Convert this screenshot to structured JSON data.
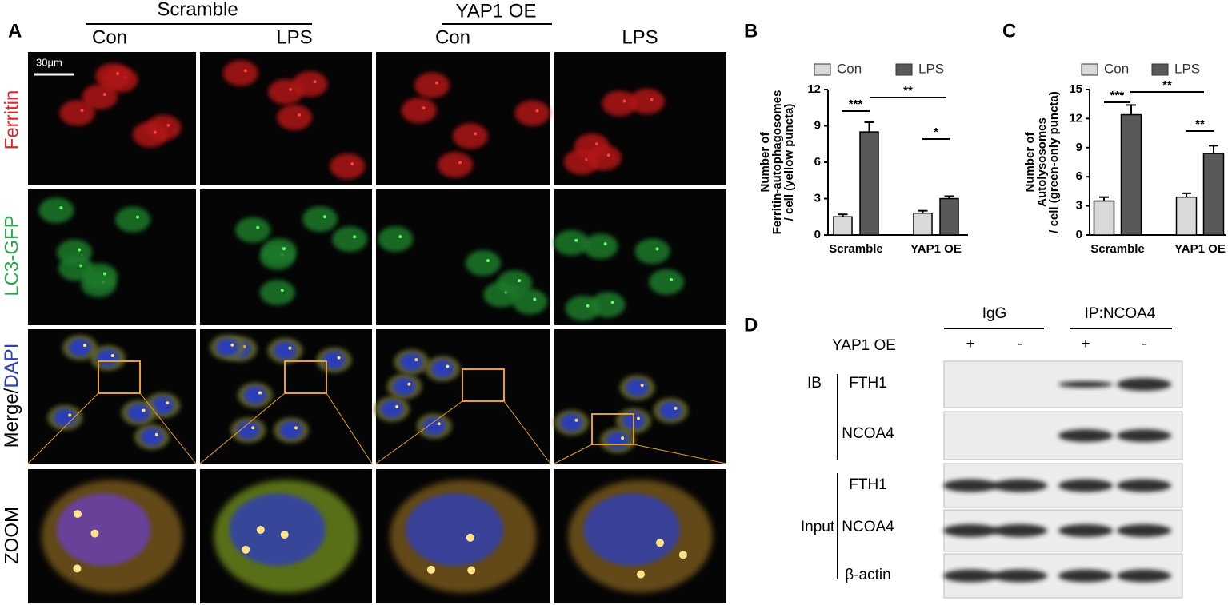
{
  "panel_labels": [
    "A",
    "B",
    "C",
    "D"
  ],
  "panel_a": {
    "groups": [
      {
        "title": "Scramble",
        "columns": [
          "Con",
          "LPS"
        ]
      },
      {
        "title": "YAP1 OE",
        "columns": [
          "Con",
          "LPS"
        ]
      }
    ],
    "rows": [
      "Ferritin",
      "LC3-GFP",
      [
        "Merge/",
        "DAPI"
      ],
      "ZOOM"
    ],
    "scale_bar": "30μm"
  },
  "chart_data": [
    {
      "type": "bar",
      "ylabel": [
        "Number of",
        "Ferritin-autophagosomes",
        "/ cell (yellow puncta)"
      ],
      "categories": [
        "Scramble",
        "YAP1 OE"
      ],
      "series": [
        {
          "name": "Con",
          "color": "#d9d9d9",
          "values": [
            1.5,
            1.8
          ],
          "errors": [
            0.2,
            0.2
          ]
        },
        {
          "name": "LPS",
          "color": "#595959",
          "values": [
            8.5,
            3.0
          ],
          "errors": [
            0.8,
            0.2
          ]
        }
      ],
      "ylim": [
        0,
        12
      ],
      "yticks": [
        0,
        3,
        6,
        9,
        12
      ],
      "annotations": [
        "***",
        "**",
        "*"
      ]
    },
    {
      "type": "bar",
      "ylabel": [
        "Number of",
        "Autolysosomes",
        "/ cell (green-only puncta)"
      ],
      "categories": [
        "Scramble",
        "YAP1 OE"
      ],
      "series": [
        {
          "name": "Con",
          "color": "#d9d9d9",
          "values": [
            3.5,
            3.9
          ],
          "errors": [
            0.4,
            0.4
          ]
        },
        {
          "name": "LPS",
          "color": "#595959",
          "values": [
            12.4,
            8.4
          ],
          "errors": [
            1.0,
            0.8
          ]
        }
      ],
      "ylim": [
        0,
        15
      ],
      "yticks": [
        0,
        3,
        6,
        9,
        12,
        15
      ],
      "annotations": [
        "***",
        "**",
        "**"
      ]
    }
  ],
  "panel_d": {
    "groups": [
      "IgG",
      "IP:NCOA4"
    ],
    "condition": "YAP1 OE",
    "signs": [
      "+",
      "-",
      "+",
      "-"
    ],
    "sections": [
      {
        "label": "IB",
        "bands": [
          "FTH1",
          "NCOA4"
        ]
      },
      {
        "label": "Input",
        "bands": [
          "FTH1",
          "NCOA4",
          "β-actin"
        ]
      }
    ]
  }
}
